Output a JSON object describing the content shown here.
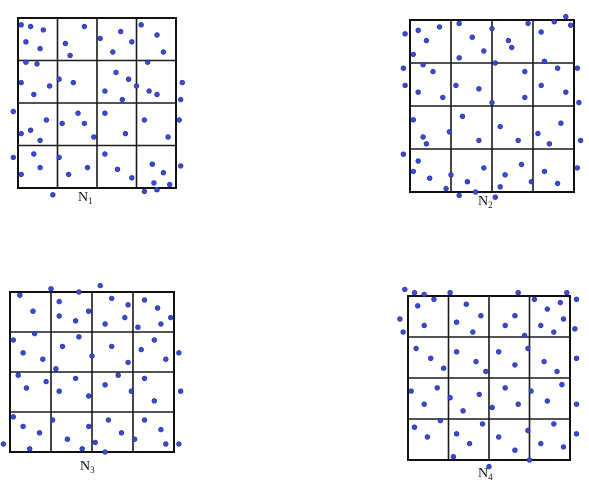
{
  "colors": {
    "dot": "#3a4ad8",
    "grid": "#111111",
    "background": "#ffffff"
  },
  "grid_divisions": 4,
  "panels": [
    {
      "id": "N1",
      "label_main": "N",
      "label_sub": "1",
      "points": [
        [
          0.02,
          0.96
        ],
        [
          0.08,
          0.95
        ],
        [
          0.16,
          0.93
        ],
        [
          0.42,
          0.95
        ],
        [
          0.65,
          0.92
        ],
        [
          0.78,
          0.96
        ],
        [
          0.88,
          0.9
        ],
        [
          0.05,
          0.86
        ],
        [
          0.14,
          0.82
        ],
        [
          0.05,
          0.74
        ],
        [
          0.12,
          0.73
        ],
        [
          0.3,
          0.85
        ],
        [
          0.33,
          0.78
        ],
        [
          0.52,
          0.88
        ],
        [
          0.6,
          0.8
        ],
        [
          0.72,
          0.86
        ],
        [
          0.82,
          0.74
        ],
        [
          0.92,
          0.8
        ],
        [
          0.02,
          0.62
        ],
        [
          0.1,
          0.55
        ],
        [
          0.2,
          0.6
        ],
        [
          0.26,
          0.64
        ],
        [
          0.35,
          0.62
        ],
        [
          0.55,
          0.57
        ],
        [
          0.66,
          0.52
        ],
        [
          0.62,
          0.68
        ],
        [
          0.7,
          0.64
        ],
        [
          0.75,
          0.6
        ],
        [
          0.83,
          0.57
        ],
        [
          0.88,
          0.55
        ],
        [
          1.03,
          0.52
        ],
        [
          1.04,
          0.62
        ],
        [
          -0.03,
          0.45
        ],
        [
          0.02,
          0.32
        ],
        [
          0.08,
          0.34
        ],
        [
          0.18,
          0.4
        ],
        [
          0.14,
          0.28
        ],
        [
          0.28,
          0.38
        ],
        [
          0.38,
          0.44
        ],
        [
          0.42,
          0.38
        ],
        [
          0.48,
          0.3
        ],
        [
          0.55,
          0.44
        ],
        [
          0.68,
          0.32
        ],
        [
          0.8,
          0.4
        ],
        [
          0.95,
          0.3
        ],
        [
          1.02,
          0.4
        ],
        [
          -0.03,
          0.18
        ],
        [
          0.02,
          0.08
        ],
        [
          0.1,
          0.2
        ],
        [
          0.14,
          0.12
        ],
        [
          0.26,
          0.18
        ],
        [
          0.32,
          0.08
        ],
        [
          0.44,
          0.12
        ],
        [
          0.55,
          0.2
        ],
        [
          0.63,
          0.11
        ],
        [
          0.72,
          0.06
        ],
        [
          0.85,
          0.14
        ],
        [
          0.86,
          0.03
        ],
        [
          0.92,
          0.09
        ],
        [
          0.96,
          0.02
        ],
        [
          1.03,
          0.13
        ],
        [
          0.22,
          -0.04
        ],
        [
          0.8,
          -0.02
        ],
        [
          0.88,
          -0.01
        ]
      ]
    },
    {
      "id": "N2",
      "label_main": "N",
      "label_sub": "2",
      "points": [
        [
          0.05,
          0.94
        ],
        [
          0.1,
          0.88
        ],
        [
          0.18,
          0.96
        ],
        [
          -0.03,
          0.92
        ],
        [
          0.3,
          0.98
        ],
        [
          0.38,
          0.9
        ],
        [
          0.5,
          0.95
        ],
        [
          0.6,
          0.88
        ],
        [
          0.72,
          0.98
        ],
        [
          0.8,
          0.93
        ],
        [
          0.88,
          0.99
        ],
        [
          0.95,
          1.02
        ],
        [
          0.98,
          0.97
        ],
        [
          0.02,
          0.8
        ],
        [
          0.08,
          0.74
        ],
        [
          0.14,
          0.7
        ],
        [
          -0.04,
          0.72
        ],
        [
          0.3,
          0.78
        ],
        [
          0.45,
          0.82
        ],
        [
          0.52,
          0.75
        ],
        [
          0.62,
          0.84
        ],
        [
          0.7,
          0.7
        ],
        [
          0.82,
          0.76
        ],
        [
          0.9,
          0.72
        ],
        [
          1.02,
          0.72
        ],
        [
          -0.03,
          0.62
        ],
        [
          0.05,
          0.58
        ],
        [
          0.2,
          0.55
        ],
        [
          0.28,
          0.62
        ],
        [
          0.42,
          0.6
        ],
        [
          0.5,
          0.52
        ],
        [
          0.7,
          0.55
        ],
        [
          0.8,
          0.62
        ],
        [
          0.95,
          0.58
        ],
        [
          1.03,
          0.52
        ],
        [
          0.02,
          0.42
        ],
        [
          0.08,
          0.32
        ],
        [
          0.1,
          0.28
        ],
        [
          0.24,
          0.35
        ],
        [
          0.32,
          0.44
        ],
        [
          0.42,
          0.3
        ],
        [
          0.55,
          0.38
        ],
        [
          0.66,
          0.3
        ],
        [
          0.78,
          0.34
        ],
        [
          0.85,
          0.28
        ],
        [
          0.92,
          0.4
        ],
        [
          1.04,
          0.3
        ],
        [
          -0.04,
          0.22
        ],
        [
          0.02,
          0.12
        ],
        [
          0.05,
          0.18
        ],
        [
          0.12,
          0.08
        ],
        [
          0.25,
          0.1
        ],
        [
          0.35,
          0.06
        ],
        [
          0.45,
          0.14
        ],
        [
          0.58,
          0.1
        ],
        [
          0.68,
          0.16
        ],
        [
          0.74,
          0.06
        ],
        [
          0.82,
          0.12
        ],
        [
          0.9,
          0.05
        ],
        [
          1.02,
          0.14
        ],
        [
          0.3,
          -0.02
        ],
        [
          0.4,
          0.0
        ],
        [
          0.52,
          -0.03
        ],
        [
          0.55,
          0.03
        ],
        [
          0.22,
          0.02
        ]
      ]
    },
    {
      "id": "N3",
      "label_main": "N",
      "label_sub": "3",
      "points": [
        [
          0.06,
          0.98
        ],
        [
          0.25,
          1.02
        ],
        [
          0.3,
          0.94
        ],
        [
          0.42,
          1.0
        ],
        [
          0.55,
          1.04
        ],
        [
          0.62,
          0.96
        ],
        [
          0.72,
          0.92
        ],
        [
          0.82,
          0.95
        ],
        [
          0.9,
          0.9
        ],
        [
          0.48,
          0.88
        ],
        [
          0.14,
          0.88
        ],
        [
          0.3,
          0.85
        ],
        [
          0.4,
          0.82
        ],
        [
          0.58,
          0.8
        ],
        [
          0.7,
          0.84
        ],
        [
          0.78,
          0.78
        ],
        [
          0.92,
          0.8
        ],
        [
          0.98,
          0.84
        ],
        [
          0.02,
          0.7
        ],
        [
          0.08,
          0.62
        ],
        [
          0.2,
          0.58
        ],
        [
          0.32,
          0.66
        ],
        [
          0.42,
          0.72
        ],
        [
          0.5,
          0.6
        ],
        [
          0.62,
          0.66
        ],
        [
          0.72,
          0.56
        ],
        [
          0.8,
          0.64
        ],
        [
          0.88,
          0.7
        ],
        [
          0.95,
          0.58
        ],
        [
          1.03,
          0.62
        ],
        [
          0.15,
          0.74
        ],
        [
          0.05,
          0.48
        ],
        [
          0.1,
          0.4
        ],
        [
          0.22,
          0.44
        ],
        [
          0.3,
          0.38
        ],
        [
          0.4,
          0.46
        ],
        [
          0.48,
          0.35
        ],
        [
          0.58,
          0.42
        ],
        [
          0.66,
          0.48
        ],
        [
          0.74,
          0.38
        ],
        [
          0.82,
          0.46
        ],
        [
          0.88,
          0.32
        ],
        [
          1.04,
          0.38
        ],
        [
          0.28,
          0.52
        ],
        [
          0.02,
          0.22
        ],
        [
          0.08,
          0.16
        ],
        [
          0.18,
          0.12
        ],
        [
          0.26,
          0.2
        ],
        [
          0.35,
          0.08
        ],
        [
          0.48,
          0.16
        ],
        [
          0.52,
          0.06
        ],
        [
          0.6,
          0.2
        ],
        [
          0.68,
          0.12
        ],
        [
          0.76,
          0.08
        ],
        [
          0.82,
          0.2
        ],
        [
          0.92,
          0.14
        ],
        [
          0.95,
          0.05
        ],
        [
          1.03,
          0.05
        ],
        [
          -0.04,
          0.05
        ],
        [
          0.12,
          0.02
        ],
        [
          0.44,
          0.02
        ],
        [
          0.58,
          0.0
        ]
      ]
    },
    {
      "id": "N4",
      "label_main": "N",
      "label_sub": "4",
      "points": [
        [
          -0.02,
          1.04
        ],
        [
          0.04,
          1.02
        ],
        [
          0.1,
          1.01
        ],
        [
          0.16,
          0.98
        ],
        [
          0.06,
          0.94
        ],
        [
          0.26,
          1.02
        ],
        [
          0.36,
          0.95
        ],
        [
          0.45,
          0.88
        ],
        [
          0.68,
          1.02
        ],
        [
          0.78,
          0.98
        ],
        [
          0.86,
          0.92
        ],
        [
          0.94,
          0.96
        ],
        [
          0.98,
          1.02
        ],
        [
          1.04,
          0.98
        ],
        [
          -0.05,
          0.86
        ],
        [
          -0.03,
          0.78
        ],
        [
          0.1,
          0.82
        ],
        [
          0.3,
          0.84
        ],
        [
          0.4,
          0.78
        ],
        [
          0.6,
          0.82
        ],
        [
          0.66,
          0.88
        ],
        [
          0.72,
          0.76
        ],
        [
          0.82,
          0.82
        ],
        [
          0.9,
          0.78
        ],
        [
          0.96,
          0.86
        ],
        [
          1.03,
          0.8
        ],
        [
          0.05,
          0.68
        ],
        [
          0.14,
          0.62
        ],
        [
          0.22,
          0.56
        ],
        [
          0.3,
          0.66
        ],
        [
          0.42,
          0.6
        ],
        [
          0.48,
          0.54
        ],
        [
          0.56,
          0.66
        ],
        [
          0.66,
          0.58
        ],
        [
          0.74,
          0.68
        ],
        [
          0.84,
          0.6
        ],
        [
          0.92,
          0.54
        ],
        [
          1.04,
          0.62
        ],
        [
          0.02,
          0.42
        ],
        [
          0.1,
          0.34
        ],
        [
          0.18,
          0.44
        ],
        [
          0.26,
          0.38
        ],
        [
          0.34,
          0.3
        ],
        [
          0.44,
          0.4
        ],
        [
          0.52,
          0.32
        ],
        [
          0.6,
          0.44
        ],
        [
          0.68,
          0.34
        ],
        [
          0.76,
          0.42
        ],
        [
          0.86,
          0.36
        ],
        [
          0.95,
          0.46
        ],
        [
          1.04,
          0.34
        ],
        [
          0.04,
          0.2
        ],
        [
          0.12,
          0.14
        ],
        [
          0.2,
          0.24
        ],
        [
          0.3,
          0.16
        ],
        [
          0.38,
          0.1
        ],
        [
          0.46,
          0.22
        ],
        [
          0.56,
          0.14
        ],
        [
          0.66,
          0.06
        ],
        [
          0.74,
          0.18
        ],
        [
          0.82,
          0.1
        ],
        [
          0.9,
          0.22
        ],
        [
          0.96,
          0.08
        ],
        [
          1.04,
          0.16
        ],
        [
          0.28,
          0.02
        ],
        [
          0.5,
          -0.04
        ],
        [
          0.75,
          0.0
        ]
      ]
    }
  ]
}
